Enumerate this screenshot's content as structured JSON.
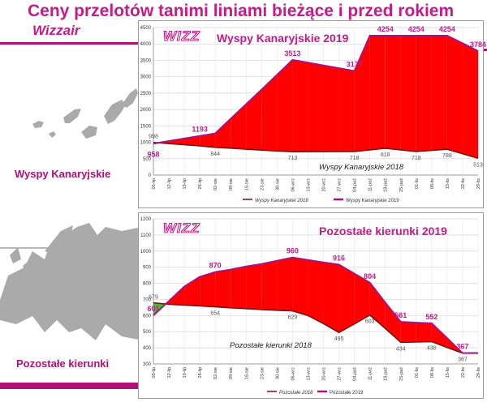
{
  "header": {
    "title": "Ceny przelotów tanimi liniami bieżące i przed rokiem",
    "subtitle": "Wizzair"
  },
  "regions": {
    "canary_label": "Wyspy Kanaryjskie",
    "other_label": "Pozostałe kierunki"
  },
  "colors": {
    "accent": "#c8198a",
    "stripe": "#b40f78",
    "area_fill": "#ff0000",
    "line_2019": "#b0107a",
    "line_2018": "#7a0f0f",
    "below_fill": "#22cc22",
    "map": "#aaaaaa"
  },
  "chart_data": [
    {
      "type": "area",
      "logo": "WIZZ",
      "title": "Wyspy Kanaryjskie 2019",
      "annotation": "Wyspy Kanaryjskie 2018",
      "ylim": [
        0,
        4500
      ],
      "yticks": [
        0,
        500,
        1000,
        1500,
        2000,
        2500,
        3000,
        3500,
        4000,
        4500
      ],
      "x": [
        "05-lip",
        "12-lip",
        "19-lip",
        "26-lip",
        "02-sie",
        "09-sie",
        "16-sie",
        "23-sie",
        "30-sie",
        "06-wrz",
        "13-wrz",
        "20-wrz",
        "27-wrz",
        "04-paź",
        "11-paź",
        "18-paź",
        "25-paź",
        "01-lis",
        "08-lis",
        "15-lis",
        "22-lis",
        "29-lis"
      ],
      "series": [
        {
          "name": "Wyspy Kanaryjskie 2018",
          "values": [
            998,
            960,
            925,
            890,
            844,
            820,
            790,
            760,
            735,
            713,
            714,
            715,
            717,
            718,
            768,
            818,
            768,
            718,
            753,
            788,
            650,
            513
          ]
        },
        {
          "name": "Wyspy Kanaryjskie 2019",
          "values": [
            958,
            1040,
            1115,
            1193,
            1270,
            1720,
            2165,
            2610,
            3060,
            3513,
            3430,
            3345,
            3260,
            3177,
            4254,
            4254,
            4254,
            4254,
            4254,
            4254,
            4019,
            3784
          ]
        }
      ],
      "labels_2019": [
        {
          "i": 0,
          "text": "958"
        },
        {
          "i": 3,
          "text": "1193"
        },
        {
          "i": 9,
          "text": "3513"
        },
        {
          "i": 13,
          "text": "3177"
        },
        {
          "i": 15,
          "text": "4254"
        },
        {
          "i": 17,
          "text": "4254"
        },
        {
          "i": 19,
          "text": "4254"
        },
        {
          "i": 21,
          "text": "3784"
        }
      ],
      "labels_2018": [
        {
          "i": 0,
          "text": "998"
        },
        {
          "i": 4,
          "text": "844"
        },
        {
          "i": 9,
          "text": "713"
        },
        {
          "i": 13,
          "text": "718"
        },
        {
          "i": 15,
          "text": "818"
        },
        {
          "i": 17,
          "text": "718"
        },
        {
          "i": 19,
          "text": "788"
        },
        {
          "i": 21,
          "text": "513"
        }
      ],
      "legend": [
        "Wyspy Kanaryjskie 2018",
        "Wyspy Kanaryjskie 2019"
      ],
      "grid": true
    },
    {
      "type": "area",
      "logo": "WIZZ",
      "title": "Pozostałe kierunki 2019",
      "annotation": "Pozostałe kierunki 2018",
      "ylim": [
        300,
        1200
      ],
      "yticks": [
        300,
        400,
        500,
        600,
        700,
        800,
        900,
        1000,
        1100,
        1200
      ],
      "x": [
        "05-lip",
        "12-lip",
        "19-lip",
        "26-lip",
        "02-sie",
        "09-sie",
        "16-sie",
        "23-sie",
        "30-sie",
        "06-wrz",
        "13-wrz",
        "20-wrz",
        "27-wrz",
        "04-paź",
        "11-paź",
        "18-paź",
        "25-paź",
        "01-lis",
        "08-lis",
        "15-lis",
        "22-lis",
        "29-lis"
      ],
      "series": [
        {
          "name": "Pozostałe 2018",
          "values": [
            679,
            670,
            665,
            660,
            654,
            648,
            643,
            637,
            633,
            629,
            600,
            550,
            495,
            548,
            603,
            520,
            434,
            436,
            438,
            402,
            367,
            367
          ]
        },
        {
          "name": "Pozostałe 2019",
          "values": [
            601,
            690,
            780,
            840,
            870,
            885,
            905,
            920,
            940,
            960,
            945,
            930,
            916,
            860,
            804,
            680,
            561,
            556,
            552,
            460,
            367,
            367
          ]
        }
      ],
      "labels_2019": [
        {
          "i": 0,
          "text": "601"
        },
        {
          "i": 4,
          "text": "870"
        },
        {
          "i": 9,
          "text": "960"
        },
        {
          "i": 12,
          "text": "916"
        },
        {
          "i": 14,
          "text": "804"
        },
        {
          "i": 16,
          "text": "561"
        },
        {
          "i": 18,
          "text": "552"
        },
        {
          "i": 20,
          "text": "367"
        }
      ],
      "labels_2018": [
        {
          "i": 0,
          "text": "679"
        },
        {
          "i": 4,
          "text": "654"
        },
        {
          "i": 9,
          "text": "629"
        },
        {
          "i": 12,
          "text": "495"
        },
        {
          "i": 14,
          "text": "603"
        },
        {
          "i": 16,
          "text": "434"
        },
        {
          "i": 18,
          "text": "438"
        },
        {
          "i": 20,
          "text": "367"
        }
      ],
      "legend": [
        "Pozostałe 2018",
        "Pozostałe 2019"
      ],
      "grid": true
    }
  ]
}
